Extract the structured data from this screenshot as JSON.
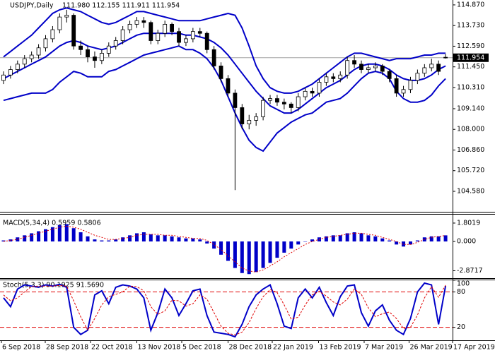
{
  "chart_data": [
    {
      "type": "candlestick",
      "title": "USDJPY,Daily",
      "subtitle": "111.980 112.155 111.911 111.954",
      "open": [
        110.7,
        111.0,
        111.3,
        111.6,
        111.9,
        112.1,
        112.5,
        113.0,
        113.5,
        114.2,
        114.3,
        112.6,
        112.4,
        112.0,
        111.8,
        112.2,
        112.6,
        112.9,
        113.5,
        113.8,
        114.0,
        113.9,
        112.9,
        113.3,
        113.8,
        113.4,
        112.8,
        113.0,
        113.4,
        113.3,
        112.4,
        111.5,
        110.8,
        110.0,
        109.2,
        108.3,
        108.5,
        108.7,
        109.6,
        109.7,
        109.5,
        109.4,
        109.2,
        109.8,
        110.1,
        110.0,
        110.6,
        110.9,
        110.8,
        111.0,
        111.8,
        111.6,
        111.3,
        111.4,
        111.5,
        111.2,
        110.8,
        110.0,
        110.2,
        110.7,
        111.1,
        111.4,
        111.6,
        111.98
      ],
      "high": [
        111.2,
        111.5,
        111.8,
        112.1,
        112.3,
        112.7,
        113.2,
        113.7,
        114.4,
        114.6,
        114.4,
        112.9,
        112.6,
        112.3,
        112.4,
        112.8,
        113.1,
        113.7,
        114.0,
        114.2,
        114.2,
        114.0,
        113.5,
        114.0,
        113.9,
        113.6,
        113.2,
        113.6,
        113.6,
        113.4,
        112.6,
        111.7,
        111.0,
        110.2,
        109.4,
        108.8,
        108.9,
        109.8,
        109.9,
        109.9,
        109.7,
        109.5,
        110.0,
        110.3,
        110.3,
        110.8,
        111.1,
        111.1,
        111.2,
        112.0,
        112.1,
        111.8,
        111.6,
        111.7,
        111.6,
        111.3,
        111.0,
        110.4,
        110.9,
        111.3,
        111.6,
        111.9,
        111.8,
        112.155
      ],
      "low": [
        110.5,
        110.8,
        111.1,
        111.4,
        111.7,
        111.9,
        112.3,
        112.8,
        113.3,
        113.9,
        112.4,
        112.1,
        111.7,
        111.4,
        111.6,
        112.0,
        112.4,
        112.7,
        113.3,
        113.6,
        113.6,
        112.7,
        112.7,
        113.1,
        113.2,
        112.6,
        112.6,
        112.8,
        113.1,
        112.2,
        111.3,
        110.6,
        109.8,
        104.65,
        108.0,
        108.0,
        108.2,
        108.5,
        109.4,
        109.3,
        109.1,
        108.9,
        109.0,
        109.6,
        109.8,
        109.8,
        110.4,
        110.6,
        110.6,
        110.8,
        111.4,
        111.1,
        111.1,
        111.2,
        111.0,
        110.6,
        109.8,
        109.8,
        110.0,
        110.5,
        110.9,
        111.2,
        111.0,
        111.911
      ],
      "close": [
        111.0,
        111.3,
        111.6,
        111.9,
        112.1,
        112.5,
        113.0,
        113.5,
        114.2,
        114.3,
        112.6,
        112.4,
        112.0,
        111.8,
        112.2,
        112.6,
        112.9,
        113.5,
        113.8,
        114.0,
        113.9,
        112.9,
        113.3,
        113.8,
        113.4,
        112.8,
        113.0,
        113.4,
        113.3,
        112.4,
        111.5,
        110.8,
        110.0,
        109.2,
        108.3,
        108.5,
        108.7,
        109.6,
        109.7,
        109.5,
        109.4,
        109.2,
        109.8,
        110.1,
        110.0,
        110.6,
        110.9,
        110.8,
        111.0,
        111.8,
        111.6,
        111.3,
        111.4,
        111.5,
        111.2,
        110.8,
        110.0,
        110.2,
        110.7,
        111.1,
        111.4,
        111.6,
        111.2,
        111.954
      ],
      "series": [
        {
          "color": "#0000c8",
          "values": [
            112.0,
            112.3,
            112.6,
            112.9,
            113.2,
            113.6,
            114.0,
            114.4,
            114.6,
            114.7,
            114.6,
            114.5,
            114.3,
            114.1,
            113.9,
            113.8,
            113.9,
            114.1,
            114.3,
            114.5,
            114.5,
            114.4,
            114.3,
            114.2,
            114.1,
            114.0,
            114.0,
            114.0,
            114.0,
            114.1,
            114.2,
            114.3,
            114.4,
            114.3,
            113.6,
            112.6,
            111.5,
            110.8,
            110.3,
            110.1,
            110.0,
            110.0,
            110.1,
            110.3,
            110.5,
            110.8,
            111.1,
            111.4,
            111.7,
            112.0,
            112.2,
            112.2,
            112.1,
            112.0,
            111.9,
            111.8,
            111.9,
            111.9,
            111.9,
            112.0,
            112.1,
            112.1,
            112.2,
            112.2
          ]
        },
        {
          "color": "#0000c8",
          "values": [
            110.8,
            111.0,
            111.2,
            111.4,
            111.6,
            111.8,
            112.0,
            112.3,
            112.6,
            112.8,
            112.9,
            112.8,
            112.6,
            112.5,
            112.4,
            112.5,
            112.6,
            112.8,
            113.0,
            113.2,
            113.3,
            113.3,
            113.3,
            113.3,
            113.3,
            113.3,
            113.2,
            113.2,
            113.1,
            113.0,
            112.8,
            112.5,
            112.1,
            111.6,
            111.1,
            110.6,
            110.1,
            109.7,
            109.3,
            109.1,
            108.9,
            108.9,
            109.1,
            109.4,
            109.7,
            110.0,
            110.3,
            110.5,
            110.7,
            111.0,
            111.3,
            111.5,
            111.6,
            111.6,
            111.5,
            111.3,
            111.0,
            110.8,
            110.7,
            110.7,
            110.8,
            111.0,
            111.3,
            111.5
          ]
        },
        {
          "color": "#0000c8",
          "values": [
            109.6,
            109.7,
            109.8,
            109.9,
            110.0,
            110.0,
            110.0,
            110.2,
            110.6,
            110.9,
            111.2,
            111.1,
            110.9,
            110.9,
            110.9,
            111.2,
            111.3,
            111.5,
            111.7,
            111.9,
            112.1,
            112.2,
            112.3,
            112.4,
            112.5,
            112.6,
            112.4,
            112.4,
            112.2,
            111.9,
            111.4,
            110.7,
            109.8,
            108.9,
            108.1,
            107.4,
            107.0,
            106.8,
            107.3,
            107.8,
            108.1,
            108.4,
            108.6,
            108.8,
            108.9,
            109.2,
            109.5,
            109.6,
            109.7,
            110.0,
            110.4,
            110.8,
            111.1,
            111.2,
            111.1,
            110.8,
            110.1,
            109.7,
            109.5,
            109.5,
            109.6,
            109.9,
            110.4,
            110.8
          ]
        }
      ],
      "ylim": [
        103.45,
        115.14
      ],
      "yticks": [
        {
          "value": 114.87,
          "label": "114.870"
        },
        {
          "value": 113.73,
          "label": "113.730"
        },
        {
          "value": 112.59,
          "label": "112.590"
        },
        {
          "value": 111.45,
          "label": "111.450"
        },
        {
          "value": 110.31,
          "label": "110.310"
        },
        {
          "value": 109.14,
          "label": "109.140"
        },
        {
          "value": 108.0,
          "label": "108.000"
        },
        {
          "value": 106.86,
          "label": "106.860"
        },
        {
          "value": 105.72,
          "label": "105.720"
        },
        {
          "value": 104.58,
          "label": "104.580"
        }
      ],
      "last_price": {
        "value": 111.954,
        "label": "111.954"
      },
      "xlim": [
        -0.5,
        64
      ],
      "xticks": [
        {
          "value": -0.3,
          "label": "6 Sep 2018"
        },
        {
          "value": 5.95,
          "label": "28 Sep 2018"
        },
        {
          "value": 12.4,
          "label": "22 Oct 2018"
        },
        {
          "value": 19.0,
          "label": "13 Nov 2018"
        },
        {
          "value": 25.4,
          "label": "5 Dec 2018"
        },
        {
          "value": 32.0,
          "label": "28 Dec 2018"
        },
        {
          "value": 38.3,
          "label": "22 Jan 2019"
        },
        {
          "value": 44.9,
          "label": "13 Feb 2019"
        },
        {
          "value": 51.4,
          "label": "7 Mar 2019"
        },
        {
          "value": 57.8,
          "label": "26 Mar 2019"
        },
        {
          "value": 64.0,
          "label": "17 Apr 2019"
        }
      ]
    },
    {
      "type": "bar",
      "title": "MACD(5,34,4) 0.5959 0.5806",
      "color": "#0000c8",
      "values": [
        0.1,
        0.2,
        0.4,
        0.6,
        0.8,
        1.0,
        1.2,
        1.4,
        1.6,
        1.7,
        1.3,
        0.9,
        0.5,
        0.2,
        0.1,
        0.1,
        0.2,
        0.4,
        0.6,
        0.8,
        0.9,
        0.7,
        0.6,
        0.6,
        0.5,
        0.4,
        0.3,
        0.3,
        0.2,
        -0.2,
        -0.7,
        -1.3,
        -1.9,
        -2.6,
        -3.1,
        -3.2,
        -3.0,
        -2.6,
        -2.1,
        -1.6,
        -1.1,
        -0.7,
        -0.3,
        0.0,
        0.2,
        0.4,
        0.5,
        0.6,
        0.6,
        0.8,
        0.9,
        0.8,
        0.6,
        0.5,
        0.3,
        0.1,
        -0.3,
        -0.5,
        -0.3,
        0.1,
        0.4,
        0.5,
        0.5,
        0.5959
      ],
      "signal": {
        "color": "#e00000",
        "values": [
          0.0,
          0.1,
          0.2,
          0.4,
          0.6,
          0.8,
          1.0,
          1.2,
          1.4,
          1.5,
          1.4,
          1.2,
          0.9,
          0.6,
          0.4,
          0.2,
          0.2,
          0.3,
          0.4,
          0.6,
          0.7,
          0.7,
          0.7,
          0.6,
          0.6,
          0.5,
          0.4,
          0.3,
          0.3,
          0.1,
          -0.3,
          -0.8,
          -1.4,
          -2.0,
          -2.6,
          -2.9,
          -3.0,
          -2.8,
          -2.4,
          -2.0,
          -1.5,
          -1.1,
          -0.7,
          -0.3,
          0.0,
          0.2,
          0.4,
          0.5,
          0.6,
          0.7,
          0.8,
          0.8,
          0.7,
          0.6,
          0.4,
          0.2,
          0.0,
          -0.3,
          -0.3,
          -0.1,
          0.2,
          0.4,
          0.5,
          0.5806
        ]
      },
      "ylim": [
        -3.6,
        2.63
      ],
      "yticks": [
        {
          "value": 1.8019,
          "label": "1.8019"
        },
        {
          "value": 0,
          "label": "0.000"
        },
        {
          "value": -2.8717,
          "label": "-2.8717"
        }
      ]
    },
    {
      "type": "line",
      "title": "Stoch(5,3,3) 90.1925 91.5690",
      "series": [
        {
          "color": "#0000c8",
          "values": [
            70,
            55,
            85,
            92,
            90,
            88,
            92,
            90,
            93,
            88,
            20,
            8,
            15,
            75,
            82,
            60,
            88,
            92,
            90,
            85,
            70,
            15,
            45,
            85,
            70,
            40,
            60,
            82,
            85,
            40,
            12,
            10,
            8,
            4,
            25,
            55,
            75,
            85,
            92,
            60,
            22,
            18,
            70,
            85,
            70,
            88,
            62,
            40,
            72,
            90,
            92,
            45,
            22,
            48,
            58,
            32,
            15,
            8,
            35,
            80,
            95,
            92,
            25,
            90.1925
          ]
        },
        {
          "color": "#e00000",
          "dashed": true,
          "values": [
            75,
            65,
            70,
            80,
            89,
            90,
            90,
            90,
            91,
            90,
            65,
            38,
            15,
            35,
            58,
            72,
            76,
            80,
            90,
            89,
            82,
            55,
            42,
            48,
            66,
            65,
            56,
            60,
            75,
            68,
            45,
            22,
            10,
            7,
            12,
            28,
            52,
            72,
            84,
            79,
            58,
            34,
            37,
            58,
            75,
            81,
            73,
            63,
            58,
            68,
            85,
            76,
            53,
            38,
            43,
            46,
            35,
            18,
            20,
            41,
            70,
            89,
            71,
            91.569
          ]
        }
      ],
      "levels": [
        80,
        20
      ],
      "levels_color": "#e00000",
      "ylim": [
        -2,
        101
      ],
      "yticks": [
        100,
        80,
        20
      ]
    }
  ]
}
